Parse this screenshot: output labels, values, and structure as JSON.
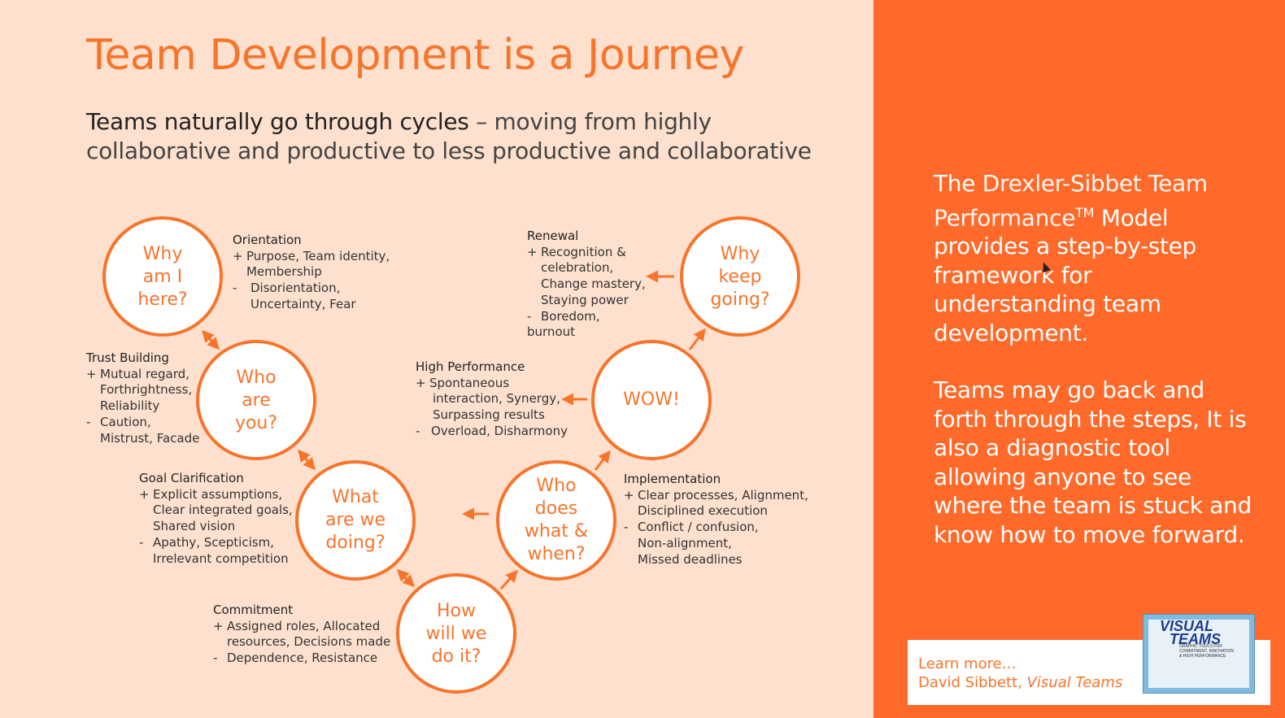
{
  "title": "Team Development is a Journey",
  "subtitle": {
    "lead": "Teams naturally go through cycles",
    "rest": " – moving from highly collaborative and productive to less productive and collaborative"
  },
  "stages": {
    "orientation": {
      "question": [
        "Why",
        "am I",
        "here?"
      ],
      "name": "Orientation",
      "plus": [
        "Purpose, Team identity,",
        "Membership"
      ],
      "minus": [
        "Disorientation,",
        "Uncertainty, Fear"
      ]
    },
    "trust": {
      "question": [
        "Who",
        "are",
        "you?"
      ],
      "name": "Trust Building",
      "plus": [
        "Mutual regard,",
        "Forthrightness,",
        "Reliability"
      ],
      "minus": [
        "Caution,",
        "Mistrust, Facade"
      ]
    },
    "goal": {
      "question": [
        "What",
        "are we",
        "doing?"
      ],
      "name": "Goal Clarification",
      "plus": [
        "Explicit assumptions,",
        "Clear integrated goals,",
        "Shared vision"
      ],
      "minus": [
        "Apathy, Scepticism,",
        "Irrelevant competition"
      ]
    },
    "commitment": {
      "question": [
        "How",
        "will we",
        "do it?"
      ],
      "name": "Commitment",
      "plus": [
        "Assigned roles, Allocated",
        "resources, Decisions made"
      ],
      "minus": [
        "Dependence, Resistance"
      ]
    },
    "implementation": {
      "question": [
        "Who",
        "does",
        "what &",
        "when?"
      ],
      "name": "Implementation",
      "plus": [
        "Clear processes, Alignment,",
        "Disciplined execution"
      ],
      "minus": [
        "Conflict / confusion,",
        "Non-alignment,",
        "Missed deadlines"
      ]
    },
    "high_performance": {
      "question": [
        "WOW!"
      ],
      "name": "High Performance",
      "plus": [
        "Spontaneous",
        "interaction, Synergy,",
        "Surpassing results"
      ],
      "minus": [
        "Overload, Disharmony"
      ]
    },
    "renewal": {
      "question": [
        "Why",
        "keep",
        "going?"
      ],
      "name": "Renewal",
      "plus": [
        "Recognition &",
        "celebration,",
        "Change mastery,",
        "Staying power"
      ],
      "minus": [
        "Boredom,",
        "burnout"
      ]
    }
  },
  "sidebar": {
    "p1_pre": "The ",
    "p1_bold": "Drexler-Sibbet Team Performance",
    "p1_tm": "TM",
    "p1_model": " Model",
    "p1_rest": " provides a step-by-step framework for understanding team development.",
    "p2": "Teams may go back and forth through the steps, It is also a diagnostic tool allowing anyone to see where the team is stuck and know how to move forward."
  },
  "learn_more": {
    "line1": "Learn more…",
    "author": "David Sibbett, ",
    "book": "Visual Teams"
  },
  "book_cover": {
    "title1": "VISUAL",
    "title2": "TEAMS",
    "subtitle": "GRAPHIC TOOLS FOR COMMITMENT, INNOVATION & HIGH PERFORMANCE"
  },
  "colors": {
    "accent": "#f7742b",
    "panel": "#ff6a2b",
    "background": "#fde0cd"
  }
}
